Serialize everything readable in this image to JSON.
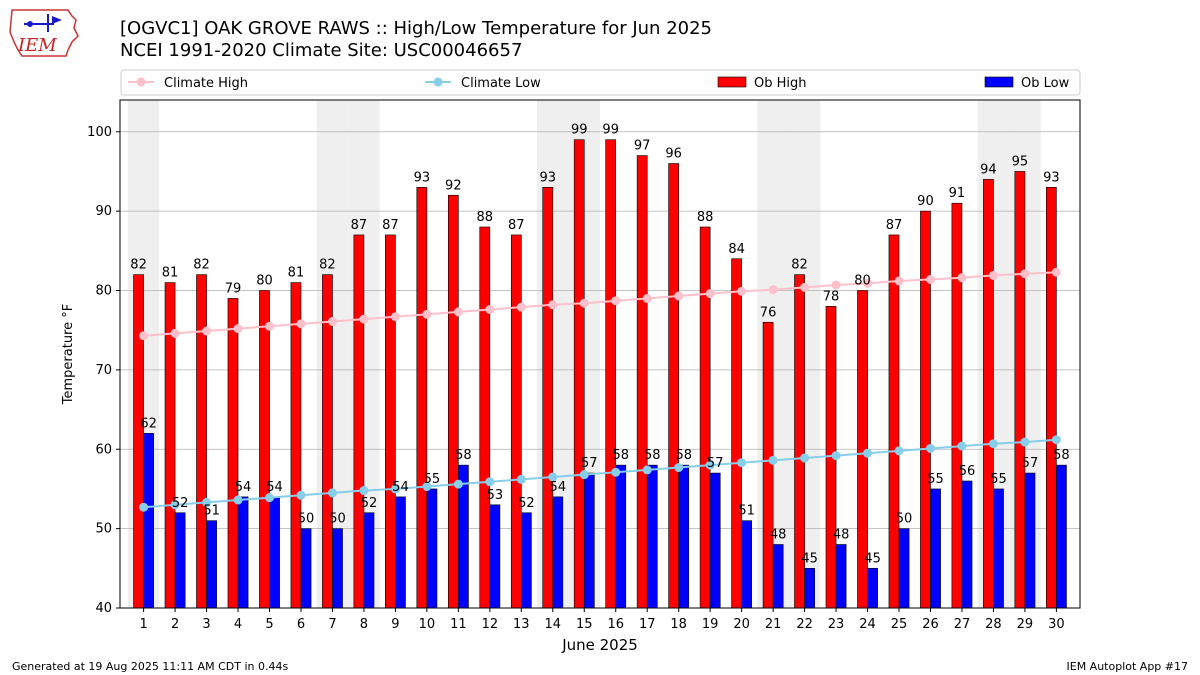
{
  "logo": {
    "text": "IEM"
  },
  "title": {
    "line1": "[OGVC1] OAK GROVE RAWS :: High/Low Temperature for Jun 2025",
    "line2": "NCEI 1991-2020 Climate Site: USC00046657"
  },
  "footer": {
    "left": "Generated at 19 Aug 2025 11:11 AM CDT in 0.44s",
    "right": "IEM Autoplot App #17"
  },
  "colors": {
    "ob_high": "#ff0000",
    "ob_low": "#0000ff",
    "climate_high": "#ffc0cb",
    "climate_low": "#87ceeb",
    "weekend_band": "#efefef",
    "grid": "#b0b0b0"
  },
  "chart_data": {
    "type": "bar",
    "xlabel": "June 2025",
    "ylabel": "Temperature °F",
    "ylim": [
      40,
      104
    ],
    "yticks": [
      40,
      50,
      60,
      70,
      80,
      90,
      100
    ],
    "grid": "horizontal",
    "legend_placement": "top",
    "categories": [
      "1",
      "2",
      "3",
      "4",
      "5",
      "6",
      "7",
      "8",
      "9",
      "10",
      "11",
      "12",
      "13",
      "14",
      "15",
      "16",
      "17",
      "18",
      "19",
      "20",
      "21",
      "22",
      "23",
      "24",
      "25",
      "26",
      "27",
      "28",
      "29",
      "30"
    ],
    "shaded_days": [
      1,
      7,
      8,
      14,
      15,
      21,
      22,
      28,
      29
    ],
    "series": [
      {
        "name": "Climate High",
        "kind": "line",
        "values": [
          74.3,
          74.6,
          74.9,
          75.2,
          75.5,
          75.8,
          76.1,
          76.4,
          76.7,
          77.0,
          77.3,
          77.6,
          77.9,
          78.2,
          78.4,
          78.7,
          79.0,
          79.3,
          79.6,
          79.9,
          80.1,
          80.4,
          80.7,
          80.9,
          81.2,
          81.4,
          81.6,
          81.9,
          82.1,
          82.3
        ]
      },
      {
        "name": "Climate Low",
        "kind": "line",
        "values": [
          52.7,
          53.0,
          53.3,
          53.6,
          53.9,
          54.2,
          54.5,
          54.8,
          55.0,
          55.3,
          55.6,
          55.9,
          56.2,
          56.5,
          56.8,
          57.1,
          57.4,
          57.7,
          58.0,
          58.3,
          58.6,
          58.9,
          59.2,
          59.5,
          59.8,
          60.1,
          60.4,
          60.7,
          60.9,
          61.2
        ]
      },
      {
        "name": "Ob High",
        "kind": "bar",
        "values": [
          82,
          81,
          82,
          79,
          80,
          81,
          82,
          87,
          87,
          93,
          92,
          88,
          87,
          93,
          99,
          99,
          97,
          96,
          88,
          84,
          76,
          82,
          78,
          80,
          87,
          90,
          91,
          94,
          95,
          93
        ]
      },
      {
        "name": "Ob Low",
        "kind": "bar",
        "values": [
          62,
          52,
          51,
          54,
          54,
          50,
          50,
          52,
          54,
          55,
          58,
          53,
          52,
          54,
          57,
          58,
          58,
          58,
          57,
          51,
          48,
          45,
          48,
          45,
          50,
          55,
          56,
          55,
          57,
          58
        ]
      }
    ]
  }
}
